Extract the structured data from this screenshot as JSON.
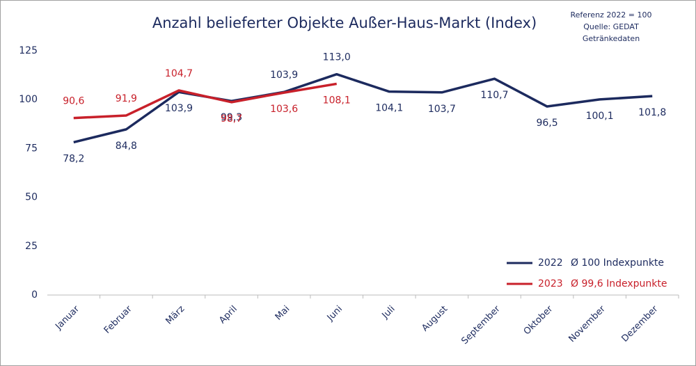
{
  "chart_data": {
    "type": "line",
    "title": "Anzahl belieferter Objekte Außer-Haus-Markt (Index)",
    "notes": [
      "Referenz 2022 = 100",
      "Quelle: GEDAT",
      "Getränkedaten"
    ],
    "categories": [
      "Januar",
      "Februar",
      "März",
      "April",
      "Mai",
      "Juni",
      "Juli",
      "August",
      "September",
      "Oktober",
      "November",
      "Dezember"
    ],
    "series": [
      {
        "name": "2022",
        "legend_note": "Ø 100 Indexpunkte",
        "color": "#1c2a5e",
        "values": [
          78.2,
          84.8,
          103.9,
          99.3,
          103.9,
          113.0,
          104.1,
          103.7,
          110.7,
          96.5,
          100.1,
          101.8
        ],
        "value_labels": [
          "78,2",
          "84,8",
          "103,9",
          "99,3",
          "103,9",
          "113,0",
          "104,1",
          "103,7",
          "110,7",
          "96,5",
          "100,1",
          "101,8"
        ]
      },
      {
        "name": "2023",
        "legend_note": "Ø 99,6 Indexpunkte",
        "color": "#c8202a",
        "values": [
          90.6,
          91.9,
          104.7,
          98.7,
          103.6,
          108.1,
          null,
          null,
          null,
          null,
          null,
          null
        ],
        "value_labels": [
          "90,6",
          "91,9",
          "104,7",
          "98,7",
          "103,6",
          "108,1",
          null,
          null,
          null,
          null,
          null,
          null
        ]
      }
    ],
    "ylim": [
      0,
      125
    ],
    "yticks": [
      0,
      25,
      50,
      75,
      100,
      125
    ],
    "grid": false,
    "legend": "lower right"
  }
}
